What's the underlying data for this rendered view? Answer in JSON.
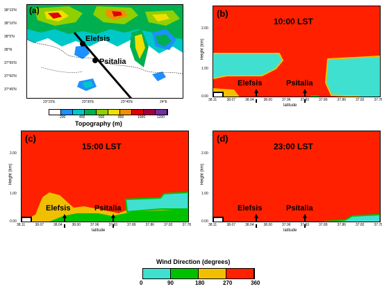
{
  "map": {
    "label": "(a)",
    "lat_ticks": [
      "38°15'N",
      "38°10'N",
      "38°5'N",
      "38°N",
      "37°55'N",
      "37°50'N",
      "37°45'N"
    ],
    "lon_ticks": [
      "23°15'E",
      "23°30'E",
      "23°45'E",
      "24°E"
    ],
    "site1": "Elefsis",
    "site2": "Psitalia",
    "colorbar_ticks": [
      "200",
      "400",
      "600",
      "800",
      "1000",
      "1200"
    ],
    "colorbar_colors": [
      "#ffffff",
      "#1e90ff",
      "#00c8c8",
      "#00b050",
      "#90d000",
      "#f0e000",
      "#f09000",
      "#e00000",
      "#a00040",
      "#7030a0"
    ],
    "colorbar_title": "Topography (m)"
  },
  "cross_sections": {
    "xlabel": "latitude",
    "ylabel": "Height (km)",
    "x_ticks": [
      "38.11",
      "38.07",
      "38.04",
      "38.00",
      "37.96",
      "37.93",
      "37.89",
      "37.86",
      "37.82",
      "37.78"
    ],
    "panels": [
      {
        "label": "(b)",
        "time": "10:00 LST",
        "y_ticks": [
          "2.00",
          "1.00",
          "0.00"
        ]
      },
      {
        "label": "(c)",
        "time": "15:00 LST",
        "y_ticks": [
          "2.00",
          "1.00",
          "0.00"
        ]
      },
      {
        "label": "(d)",
        "time": "23:00 LST",
        "y_ticks": [
          "2.00",
          "1.00",
          "0.00"
        ]
      }
    ],
    "site1": "Elefsis",
    "site2": "Psitalia"
  },
  "wind_legend": {
    "title": "Wind Direction (degrees)",
    "ticks": [
      "0",
      "90",
      "180",
      "270",
      "360"
    ],
    "colors": [
      "#40e0d0",
      "#00c000",
      "#f0c000",
      "#ff2000"
    ]
  }
}
